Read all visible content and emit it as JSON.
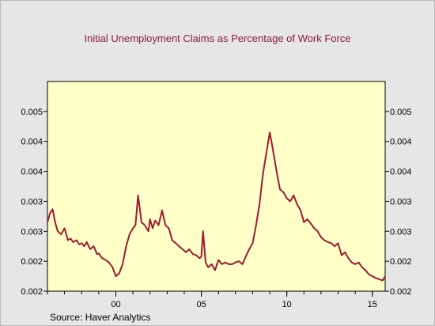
{
  "chart_data": {
    "type": "line",
    "title": "Initial Unemployment Claims as Percentage of Work Force",
    "xlabel": "",
    "ylabel": "",
    "source": "Source:   Haver Analytics",
    "x_range": [
      1996.0,
      2015.75
    ],
    "y_range": [
      0.0017,
      0.0052
    ],
    "x_ticks": [
      {
        "x": 2000,
        "label": "00"
      },
      {
        "x": 2005,
        "label": "05"
      },
      {
        "x": 2010,
        "label": "10"
      },
      {
        "x": 2015,
        "label": "15"
      }
    ],
    "y_ticks": [
      {
        "y": 0.0017,
        "label": "0.002"
      },
      {
        "y": 0.0022,
        "label": "0.002"
      },
      {
        "y": 0.0027,
        "label": "0.003"
      },
      {
        "y": 0.0032,
        "label": "0.003"
      },
      {
        "y": 0.0037,
        "label": "0.004"
      },
      {
        "y": 0.0042,
        "label": "0.004"
      },
      {
        "y": 0.0047,
        "label": "0.005"
      }
    ],
    "grid": false,
    "legend": "none",
    "colors": {
      "line": "#9e1b32",
      "plot_background": "#ffffc8",
      "title": "#8b1a3a",
      "frame_background": "#e6e6e6"
    },
    "series": [
      {
        "x": [
          1996.0,
          1996.15,
          1996.3,
          1996.45,
          1996.6,
          1996.8,
          1997.0,
          1997.2,
          1997.35,
          1997.5,
          1997.7,
          1997.85,
          1998.0,
          1998.15,
          1998.3,
          1998.5,
          1998.7,
          1998.9,
          1999.0,
          1999.2,
          1999.4,
          1999.6,
          1999.8,
          2000.0,
          2000.2,
          2000.4,
          2000.6,
          2000.8,
          2001.0,
          2001.15,
          2001.3,
          2001.5,
          2001.7,
          2001.9,
          2002.0,
          2002.15,
          2002.3,
          2002.5,
          2002.7,
          2002.9,
          2003.1,
          2003.3,
          2003.5,
          2003.7,
          2003.9,
          2004.1,
          2004.3,
          2004.5,
          2004.7,
          2004.9,
          2005.0,
          2005.1,
          2005.25,
          2005.4,
          2005.6,
          2005.8,
          2006.0,
          2006.2,
          2006.4,
          2006.6,
          2006.8,
          2007.0,
          2007.2,
          2007.4,
          2007.6,
          2007.8,
          2008.0,
          2008.2,
          2008.4,
          2008.6,
          2008.8,
          2009.0,
          2009.1,
          2009.25,
          2009.4,
          2009.6,
          2009.8,
          2010.0,
          2010.2,
          2010.4,
          2010.6,
          2010.8,
          2011.0,
          2011.2,
          2011.4,
          2011.6,
          2011.8,
          2012.0,
          2012.2,
          2012.4,
          2012.6,
          2012.8,
          2013.0,
          2013.2,
          2013.4,
          2013.6,
          2013.8,
          2014.0,
          2014.2,
          2014.4,
          2014.6,
          2014.8,
          2015.0,
          2015.2,
          2015.4,
          2015.6,
          2015.75
        ],
        "y": [
          0.00285,
          0.003,
          0.00307,
          0.00285,
          0.0027,
          0.00265,
          0.00275,
          0.00255,
          0.00258,
          0.00252,
          0.00255,
          0.00248,
          0.0025,
          0.00245,
          0.00252,
          0.0024,
          0.00245,
          0.00232,
          0.00233,
          0.00225,
          0.00222,
          0.00218,
          0.0021,
          0.00195,
          0.002,
          0.00215,
          0.00245,
          0.00265,
          0.00275,
          0.0028,
          0.0033,
          0.00285,
          0.0028,
          0.0027,
          0.0029,
          0.00275,
          0.00288,
          0.0028,
          0.00305,
          0.0028,
          0.00275,
          0.00255,
          0.0025,
          0.00245,
          0.0024,
          0.00235,
          0.0024,
          0.00232,
          0.0023,
          0.00225,
          0.00228,
          0.0027,
          0.00218,
          0.0021,
          0.00215,
          0.00205,
          0.00222,
          0.00215,
          0.00218,
          0.00215,
          0.00215,
          0.00218,
          0.0022,
          0.00215,
          0.00228,
          0.0024,
          0.0025,
          0.0028,
          0.00315,
          0.00365,
          0.004,
          0.00435,
          0.0042,
          0.00395,
          0.0037,
          0.0034,
          0.00335,
          0.00325,
          0.0032,
          0.0033,
          0.00315,
          0.00305,
          0.00285,
          0.0029,
          0.00283,
          0.00275,
          0.0027,
          0.0026,
          0.00255,
          0.00252,
          0.0025,
          0.00245,
          0.0025,
          0.0023,
          0.00235,
          0.00225,
          0.00218,
          0.00215,
          0.00218,
          0.0021,
          0.00205,
          0.00198,
          0.00195,
          0.00192,
          0.0019,
          0.00188,
          0.00195
        ]
      }
    ]
  }
}
